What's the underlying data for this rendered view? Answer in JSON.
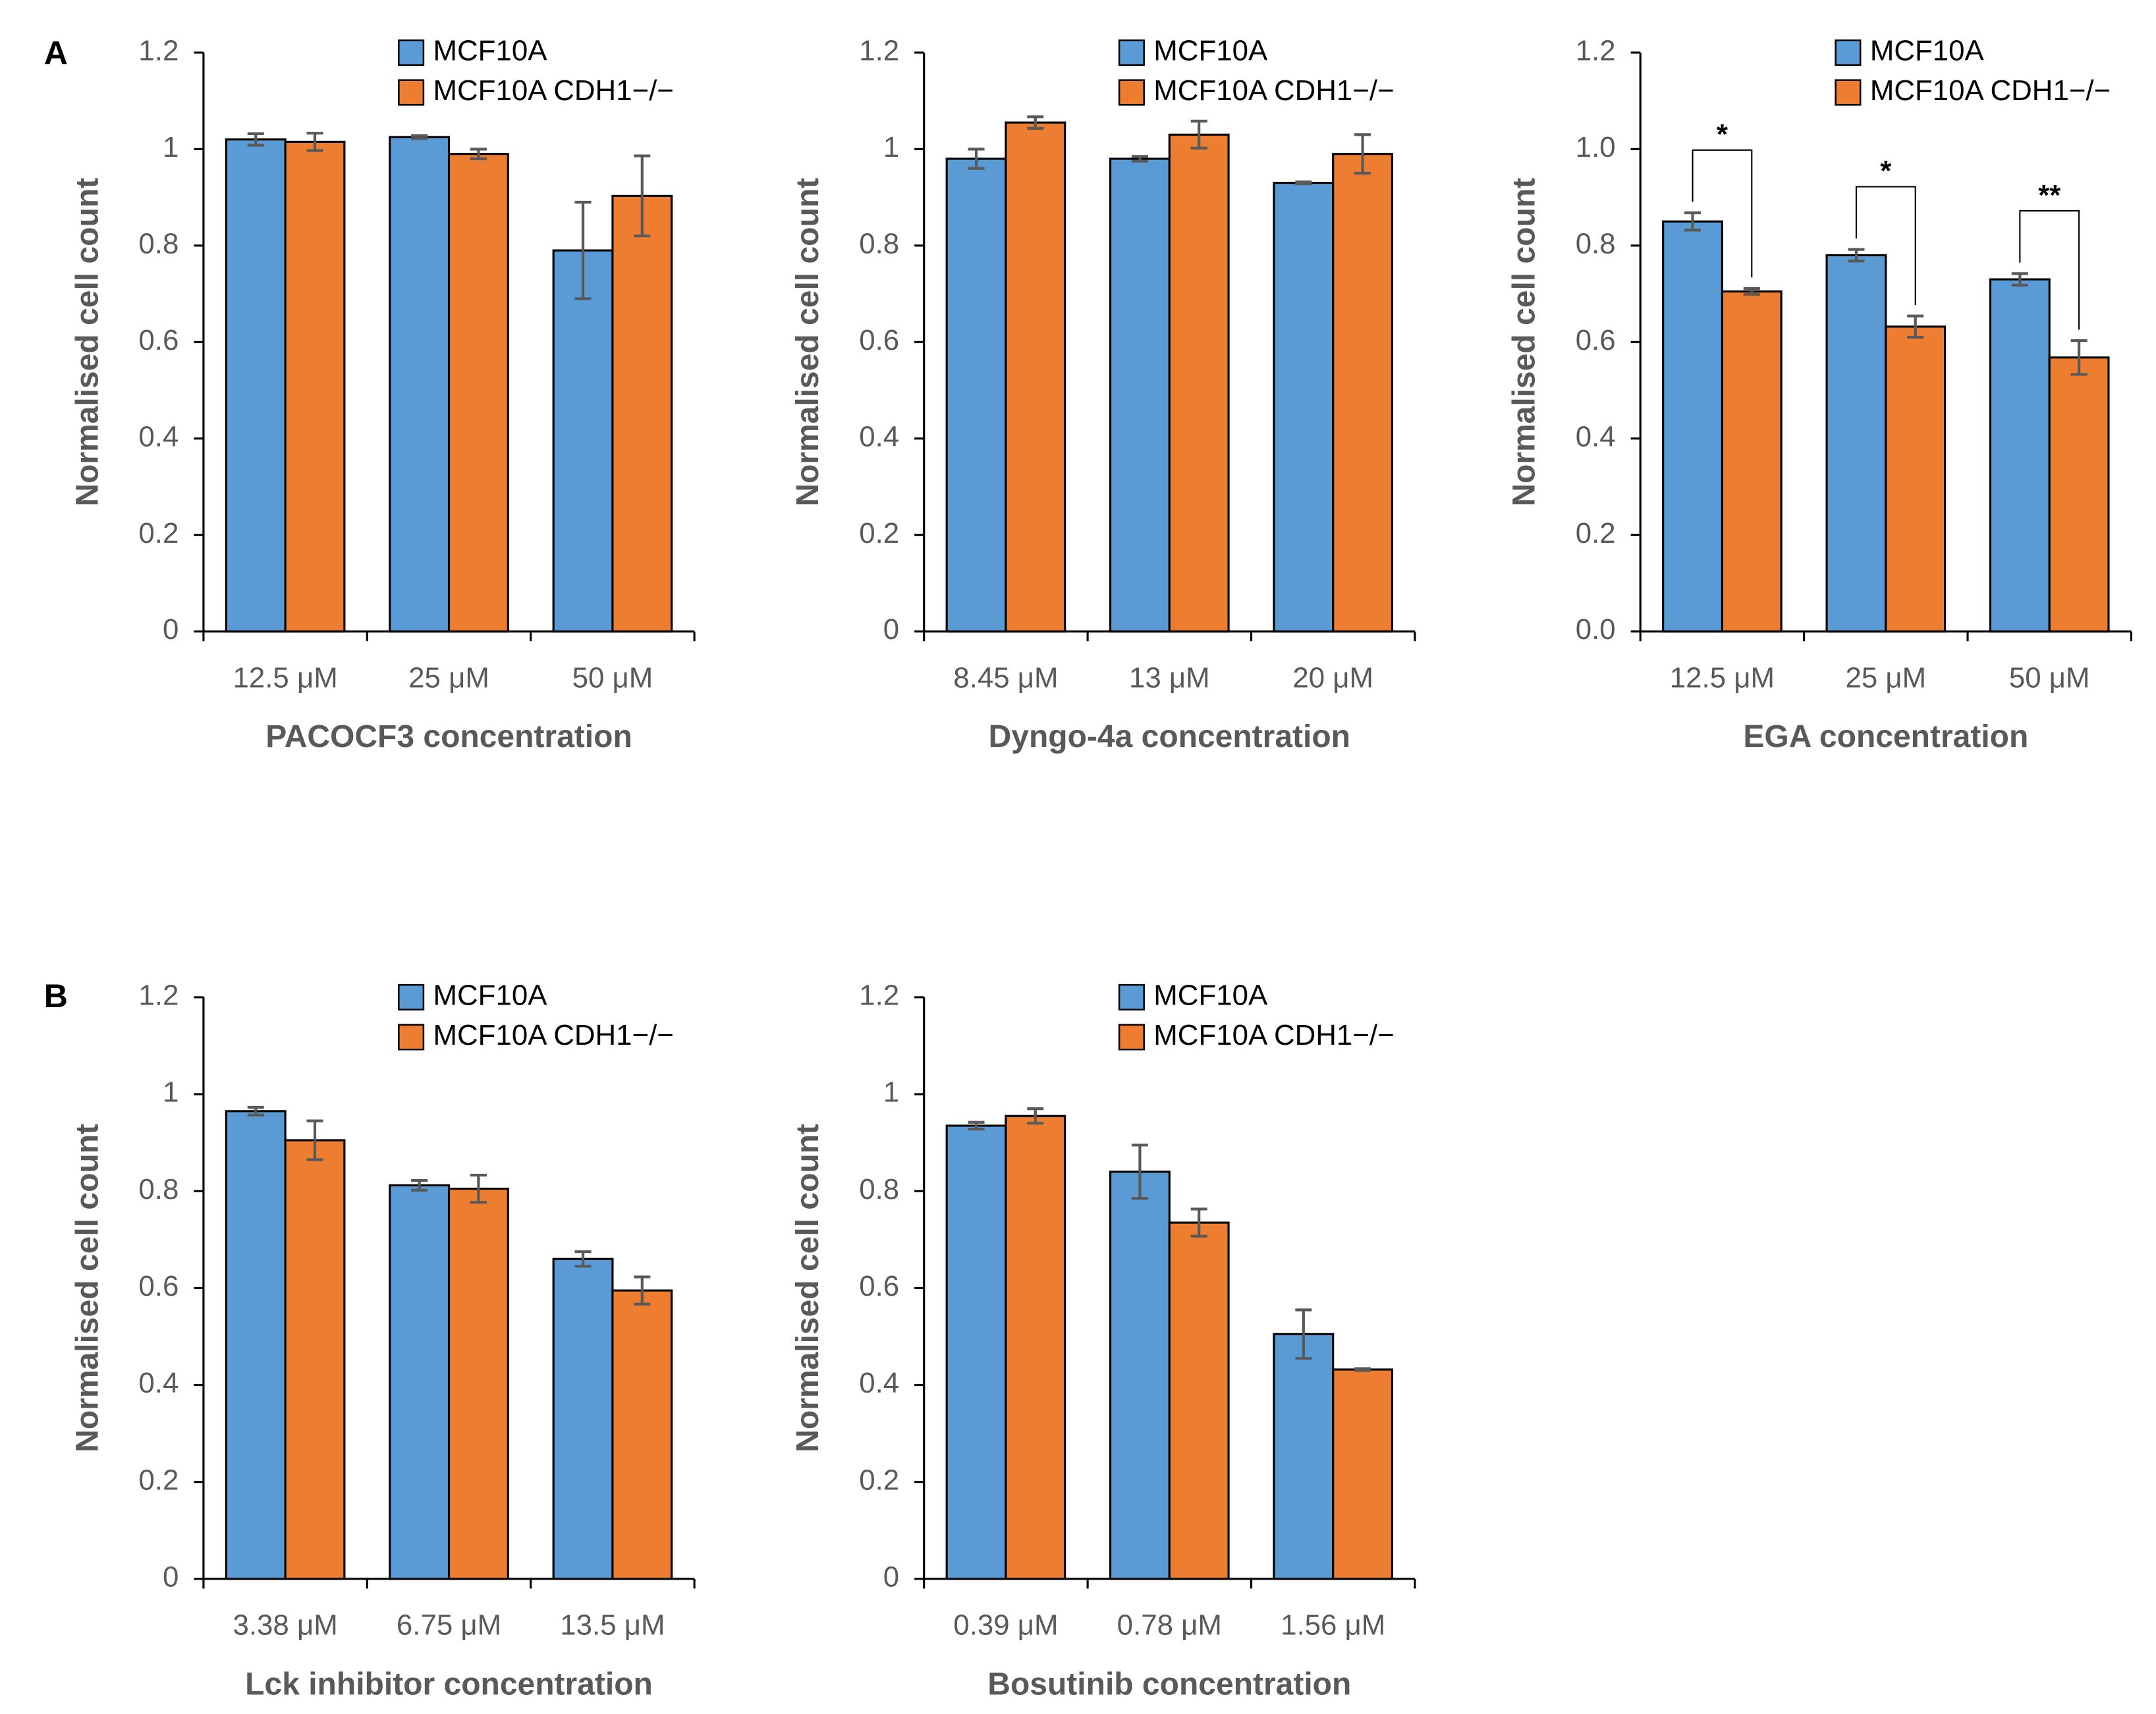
{
  "panel_labels": [
    "A",
    "B"
  ],
  "chart_data": [
    {
      "type": "bar",
      "x_label": "PACOCF3 concentration",
      "y_label": "Normalised cell count",
      "categories": [
        "12.5 μM",
        "25 μM",
        "50 μM"
      ],
      "series": [
        {
          "name": "MCF10A",
          "color": "#5b9bd5",
          "values": [
            1.02,
            1.025,
            0.79
          ],
          "errors": [
            0.012,
            0.003,
            0.1
          ]
        },
        {
          "name": "MCF10A CDH1−/−",
          "color": "#ed7d31",
          "values": [
            1.015,
            0.99,
            0.903
          ],
          "errors": [
            0.018,
            0.01,
            0.083
          ]
        }
      ],
      "ylim": [
        0,
        1.2
      ],
      "yticks": [
        0,
        0.2,
        0.4,
        0.6,
        0.8,
        1,
        1.2
      ]
    },
    {
      "type": "bar",
      "x_label": "Dyngo-4a  concentration",
      "y_label": "Normalised cell count",
      "categories": [
        "8.45 μM",
        "13 μM",
        "20 μM"
      ],
      "series": [
        {
          "name": "MCF10A",
          "color": "#5b9bd5",
          "values": [
            0.98,
            0.98,
            0.93
          ],
          "errors": [
            0.02,
            0.005,
            0.002
          ]
        },
        {
          "name": "MCF10A CDH1−/−",
          "color": "#ed7d31",
          "values": [
            1.055,
            1.03,
            0.99
          ],
          "errors": [
            0.012,
            0.028,
            0.04
          ]
        }
      ],
      "ylim": [
        0,
        1.2
      ],
      "yticks": [
        0,
        0.2,
        0.4,
        0.6,
        0.8,
        1,
        1.2
      ]
    },
    {
      "type": "bar",
      "x_label": "EGA concentration",
      "y_label": "Normalised cell count",
      "categories": [
        "12.5 μM",
        "25 μM",
        "50 μM"
      ],
      "series": [
        {
          "name": "MCF10A",
          "color": "#5b9bd5",
          "values": [
            0.85,
            0.78,
            0.73
          ],
          "errors": [
            0.018,
            0.012,
            0.012
          ]
        },
        {
          "name": "MCF10A CDH1−/−",
          "color": "#ed7d31",
          "values": [
            0.705,
            0.632,
            0.568
          ],
          "errors": [
            0.006,
            0.022,
            0.035
          ]
        }
      ],
      "annotations": [
        "*",
        "*",
        "**"
      ],
      "ylim": [
        0,
        1.2
      ],
      "yticks": [
        {
          "value": 0,
          "label": "0.0"
        },
        0.2,
        0.4,
        0.6,
        0.8,
        {
          "value": 1,
          "label": "1.0"
        },
        1.2
      ]
    },
    {
      "type": "bar",
      "x_label": "Lck inhibitor  concentration",
      "y_label": "Normalised cell count",
      "categories": [
        "3.38 μM",
        "6.75 μM",
        "13.5 μM"
      ],
      "series": [
        {
          "name": "MCF10A",
          "color": "#5b9bd5",
          "values": [
            0.965,
            0.812,
            0.66
          ],
          "errors": [
            0.008,
            0.01,
            0.015
          ]
        },
        {
          "name": "MCF10A CDH1−/−",
          "color": "#ed7d31",
          "values": [
            0.905,
            0.805,
            0.595
          ],
          "errors": [
            0.04,
            0.028,
            0.028
          ]
        }
      ],
      "ylim": [
        0,
        1.2
      ],
      "yticks": [
        0,
        0.2,
        0.4,
        0.6,
        0.8,
        1,
        1.2
      ]
    },
    {
      "type": "bar",
      "x_label": "Bosutinib concentration",
      "y_label": "Normalised cell count",
      "categories": [
        "0.39 μM",
        "0.78 μM",
        "1.56 μM"
      ],
      "series": [
        {
          "name": "MCF10A",
          "color": "#5b9bd5",
          "values": [
            0.935,
            0.84,
            0.505
          ],
          "errors": [
            0.007,
            0.055,
            0.05
          ]
        },
        {
          "name": "MCF10A CDH1−/−",
          "color": "#ed7d31",
          "values": [
            0.955,
            0.735,
            0.432
          ],
          "errors": [
            0.015,
            0.028,
            0.002
          ]
        }
      ],
      "ylim": [
        0,
        1.2
      ],
      "yticks": [
        0,
        0.2,
        0.4,
        0.6,
        0.8,
        1,
        1.2
      ]
    }
  ]
}
